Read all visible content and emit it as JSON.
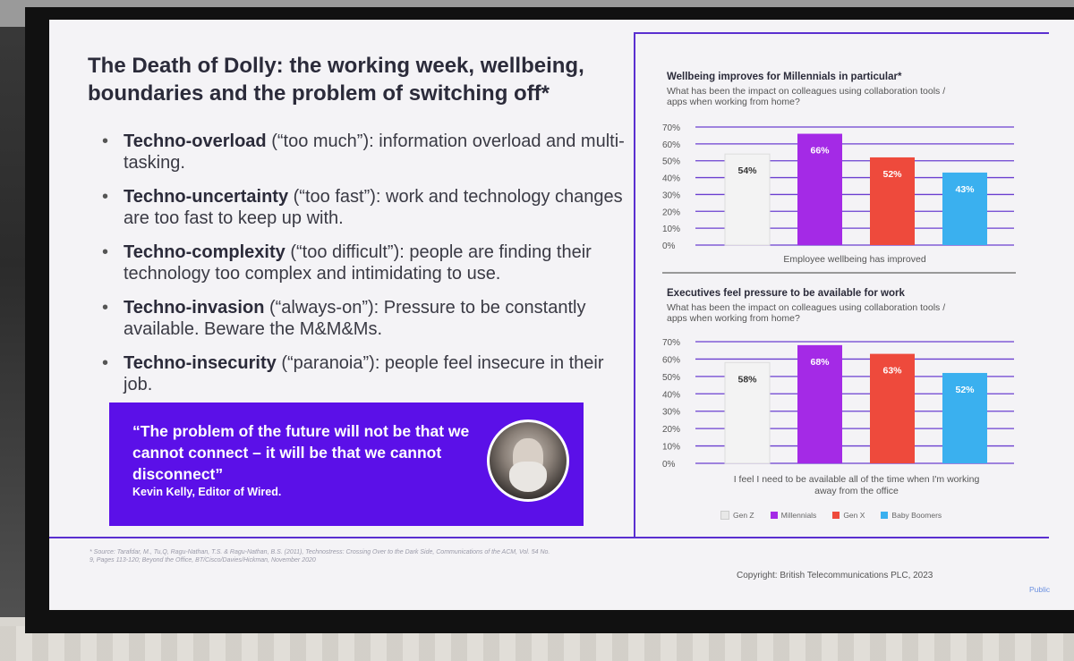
{
  "slide": {
    "title": "The Death of Dolly: the working week, wellbeing, boundaries and the problem of switching off*",
    "bullets": [
      {
        "term": "Techno-overload",
        "rest": " (“too much”): information overload and multi-tasking."
      },
      {
        "term": "Techno-uncertainty",
        "rest": " (“too fast”): work and technology changes are too fast to keep up with."
      },
      {
        "term": "Techno-complexity",
        "rest": " (“too difficult”): people are finding their technology too complex and intimidating to use."
      },
      {
        "term": "Techno-invasion",
        "rest": " (“always-on”): Pressure to be constantly available. Beware the M&M&Ms."
      },
      {
        "term": "Techno-insecurity",
        "rest": " (“paranoia”): people feel insecure in their job."
      }
    ],
    "quote": {
      "text": "“The problem of the future will not be that we cannot connect – it will be that we cannot disconnect”",
      "author": "Kevin Kelly, Editor of Wired."
    },
    "footnote": "* Source: Tarafdar, M., Tu,Q, Ragu-Nathan, T.S. & Ragu-Nathan, B.S. (2011), Technostress: Crossing Over to the Dark Side, Communications of the ACM, Vol. 54 No. 9, Pages 113-120; Beyond the Office, BT/Cisco/Davies/Hickman, November 2020",
    "copyright": "Copyright: British Telecommunications PLC, 2023",
    "classification": "Public"
  },
  "colors": {
    "gen_z": "#f3f3f3",
    "millennials": "#a42ae6",
    "gen_x": "#ee4a3c",
    "baby_boomers": "#3ab0ef",
    "accent": "#5b10e8",
    "gridline": "#6b3fd0"
  },
  "chart_data": [
    {
      "type": "bar",
      "title": "Wellbeing improves for Millennials in particular*",
      "subtitle": "What has been the impact on colleagues using collaboration tools / apps when working from home?",
      "categories": [
        "Employee wellbeing has improved"
      ],
      "series": [
        {
          "name": "Gen Z",
          "values": [
            54
          ],
          "label": "54%"
        },
        {
          "name": "Millennials",
          "values": [
            66
          ],
          "label": "66%"
        },
        {
          "name": "Gen X",
          "values": [
            52
          ],
          "label": "52%"
        },
        {
          "name": "Baby Boomers",
          "values": [
            43
          ],
          "label": "43%"
        }
      ],
      "yticks": [
        "0%",
        "10%",
        "20%",
        "30%",
        "40%",
        "50%",
        "60%",
        "70%"
      ],
      "ylim": [
        0,
        70
      ],
      "grid": true
    },
    {
      "type": "bar",
      "title": "Executives feel pressure to be available for work",
      "subtitle": "What has been the impact on colleagues using collaboration tools / apps when working from home?",
      "categories": [
        "I feel I need to be available all of the time when I'm working away from the office"
      ],
      "series": [
        {
          "name": "Gen Z",
          "values": [
            58
          ],
          "label": "58%"
        },
        {
          "name": "Millennials",
          "values": [
            68
          ],
          "label": "68%"
        },
        {
          "name": "Gen X",
          "values": [
            63
          ],
          "label": "63%"
        },
        {
          "name": "Baby Boomers",
          "values": [
            52
          ],
          "label": "52%"
        }
      ],
      "yticks": [
        "0%",
        "10%",
        "20%",
        "30%",
        "40%",
        "50%",
        "60%",
        "70%"
      ],
      "ylim": [
        0,
        70
      ],
      "grid": true
    }
  ],
  "legend": [
    "Gen Z",
    "Millennials",
    "Gen X",
    "Baby Boomers"
  ]
}
